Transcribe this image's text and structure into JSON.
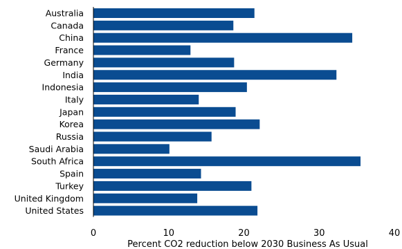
{
  "chart_data": {
    "type": "bar",
    "orientation": "horizontal",
    "categories": [
      "Australia",
      "Canada",
      "China",
      "France",
      "Germany",
      "India",
      "Indonesia",
      "Italy",
      "Japan",
      "Korea",
      "Russia",
      "Saudi Arabia",
      "South Africa",
      "Spain",
      "Turkey",
      "United Kingdom",
      "United States"
    ],
    "values": [
      21.4,
      18.6,
      34.4,
      12.9,
      18.7,
      32.3,
      20.4,
      14.0,
      18.9,
      22.1,
      15.7,
      10.1,
      35.5,
      14.3,
      21.0,
      13.8,
      21.8
    ],
    "xlabel": "Percent CO2 reduction below 2030 Business As Usual",
    "xlim": [
      0,
      40
    ],
    "xticks": [
      0,
      10,
      20,
      30,
      40
    ],
    "grid": false,
    "bar_color": "#0a4c91"
  }
}
